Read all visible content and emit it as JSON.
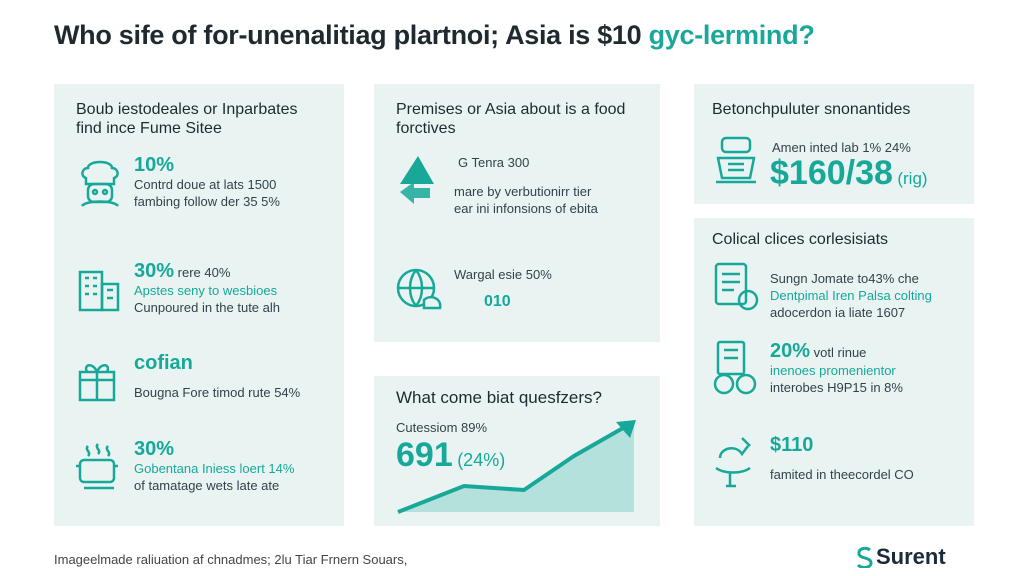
{
  "title": {
    "main": "Who sife of for-unenalitiag plartnoi; Asia is $10 ",
    "highlight": "gyc-lermind?"
  },
  "panel_left": {
    "header": "Boub iestodeales or Inparbates find ince Fume Sitee",
    "items": [
      {
        "icon": "chef-icon",
        "stat": "10%",
        "line1": "Contrd doue at lats 1500",
        "line2": "fambing follow der 35 5%"
      },
      {
        "icon": "building-icon",
        "stat": "30%",
        "stat_note": "rere 40%",
        "line1": "Apstes seny to wesbioes",
        "line2": "Cunpoured in the tute alh"
      },
      {
        "icon": "gift-box-icon",
        "stat": "cofian",
        "line1": "Bougna Fore timod rute 54%"
      },
      {
        "icon": "cooking-pot-icon",
        "stat": "30%",
        "line1": "Gobentana Iniess loert 14%",
        "line2": "of tamatage wets late ate"
      }
    ]
  },
  "panel_mid_top": {
    "header": "Premises or Asia about is a food forctives",
    "items": [
      {
        "icon": "growth-arrows-icon",
        "line1": "G Tenra 300",
        "line2": "mare by verbutionirr tier",
        "line3": "ear ini infonsions of ebita"
      },
      {
        "icon": "globe-food-icon",
        "line1": "Wargal esie 50%",
        "line2": "010"
      }
    ]
  },
  "panel_mid_bottom": {
    "header": "What come biat quesfzers?",
    "caption": "Cutessiom 89%",
    "value": "691",
    "value_note": "(24%)"
  },
  "panel_right_top": {
    "header": "Betonchpuluter snonantides",
    "caption": "Amen inted lab 1% 24%",
    "value": "$160/38",
    "value_note": "(rig)"
  },
  "panel_right_bottom": {
    "header": "Colical clices corlesisiats",
    "items": [
      {
        "icon": "calendar-doc-icon",
        "line1": "Sungn Jomate to43% che",
        "line2": "Dentpimal Iren Palsa colting",
        "line3": "adocerdon ia liate 1607"
      },
      {
        "icon": "report-coins-icon",
        "stat": "20%",
        "stat_note": "votl rinue",
        "line1": "inenoes promenientor",
        "line2": "interobes H9P15 in 8%"
      },
      {
        "icon": "tap-food-icon",
        "stat": "$110",
        "line1": "famited in theecordel CO"
      }
    ]
  },
  "footer": "Imageelmade raliuation af chnadmes; 2lu Tiar Frnern Souars,",
  "logo": "Surent",
  "colors": {
    "accent": "#17a89a",
    "panel": "#e9f4f2",
    "text": "#1f2a30"
  }
}
